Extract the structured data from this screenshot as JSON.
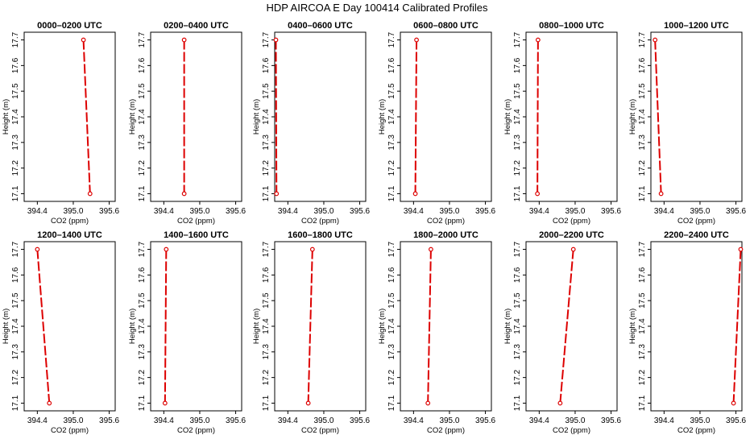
{
  "title": "HDP AIRCOA E  Day 100414  Calibrated Profiles",
  "chart_data": {
    "type": "line",
    "xlabel": "CO2 (ppm)",
    "ylabel": "Height (m)",
    "xlim": [
      394.18,
      395.7
    ],
    "ylim": [
      17.07,
      17.73
    ],
    "xticks": [
      "394.4",
      "395.0",
      "395.6"
    ],
    "xtick_values": [
      394.4,
      395.0,
      395.6
    ],
    "yticks": [
      "17.1",
      "17.2",
      "17.3",
      "17.4",
      "17.5",
      "17.6",
      "17.7"
    ],
    "ytick_values": [
      17.1,
      17.2,
      17.3,
      17.4,
      17.5,
      17.6,
      17.7
    ],
    "series_color": "#dd0000",
    "line_style": "dashed",
    "grid": false,
    "panels": [
      {
        "title": "0000–0200 UTC",
        "points": [
          {
            "x": 395.17,
            "y": 17.7
          },
          {
            "x": 395.28,
            "y": 17.1
          }
        ]
      },
      {
        "title": "0200–0400 UTC",
        "points": [
          {
            "x": 394.74,
            "y": 17.7
          },
          {
            "x": 394.74,
            "y": 17.1
          }
        ]
      },
      {
        "title": "0400–0600 UTC",
        "points": [
          {
            "x": 394.2,
            "y": 17.7
          },
          {
            "x": 394.21,
            "y": 17.1
          }
        ]
      },
      {
        "title": "0600–0800 UTC",
        "points": [
          {
            "x": 394.45,
            "y": 17.7
          },
          {
            "x": 394.43,
            "y": 17.1
          }
        ]
      },
      {
        "title": "0800–1000 UTC",
        "points": [
          {
            "x": 394.38,
            "y": 17.7
          },
          {
            "x": 394.37,
            "y": 17.1
          }
        ]
      },
      {
        "title": "1000–1200 UTC",
        "points": [
          {
            "x": 394.25,
            "y": 17.7
          },
          {
            "x": 394.35,
            "y": 17.1
          }
        ]
      },
      {
        "title": "1200–1400 UTC",
        "points": [
          {
            "x": 394.4,
            "y": 17.7
          },
          {
            "x": 394.6,
            "y": 17.1
          }
        ]
      },
      {
        "title": "1400–1600 UTC",
        "points": [
          {
            "x": 394.44,
            "y": 17.7
          },
          {
            "x": 394.42,
            "y": 17.1
          }
        ]
      },
      {
        "title": "1600–1800 UTC",
        "points": [
          {
            "x": 394.81,
            "y": 17.7
          },
          {
            "x": 394.74,
            "y": 17.1
          }
        ]
      },
      {
        "title": "1800–2000 UTC",
        "points": [
          {
            "x": 394.69,
            "y": 17.7
          },
          {
            "x": 394.64,
            "y": 17.1
          }
        ]
      },
      {
        "title": "2000–2200 UTC",
        "points": [
          {
            "x": 394.97,
            "y": 17.7
          },
          {
            "x": 394.75,
            "y": 17.1
          }
        ]
      },
      {
        "title": "2200–2400 UTC",
        "points": [
          {
            "x": 395.68,
            "y": 17.7
          },
          {
            "x": 395.56,
            "y": 17.1
          }
        ]
      }
    ]
  }
}
